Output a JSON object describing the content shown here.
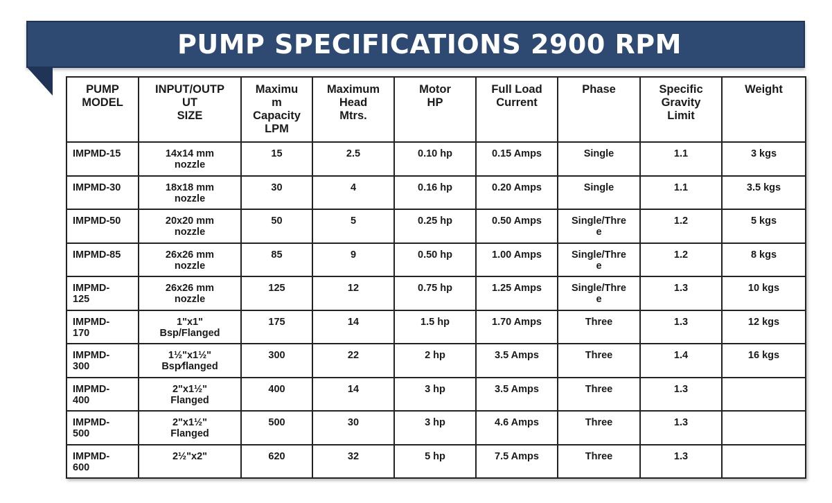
{
  "title": "PUMP SPECIFICATIONS 2900 RPM",
  "colors": {
    "banner": "#2e4a72",
    "banner_text": "#ffffff",
    "grid": "#222222"
  },
  "headers": [
    {
      "lines": [
        "PUMP",
        "MODEL"
      ]
    },
    {
      "lines": [
        "INPUT/OUTP",
        "UT",
        "SIZE"
      ]
    },
    {
      "lines": [
        "Maximu",
        "m",
        "Capacity",
        "LPM"
      ]
    },
    {
      "lines": [
        "Maximum",
        "Head",
        "Mtrs."
      ]
    },
    {
      "lines": [
        "Motor",
        "HP"
      ]
    },
    {
      "lines": [
        "Full Load",
        "Current"
      ]
    },
    {
      "lines": [
        "Phase"
      ]
    },
    {
      "lines": [
        "Specific",
        "Gravity",
        "Limit"
      ]
    },
    {
      "lines": [
        "Weight"
      ]
    }
  ],
  "rows": [
    {
      "model": [
        "IMPMD-15"
      ],
      "size": [
        "14x14 mm",
        "nozzle"
      ],
      "capacity": "15",
      "head": "2.5",
      "hp": "0.10 hp",
      "current": "0.15 Amps",
      "phase": [
        "Single"
      ],
      "gravity": "1.1",
      "weight": "3 kgs"
    },
    {
      "model": [
        "IMPMD-30"
      ],
      "size": [
        "18x18 mm",
        "nozzle"
      ],
      "capacity": "30",
      "head": "4",
      "hp": "0.16 hp",
      "current": "0.20 Amps",
      "phase": [
        "Single"
      ],
      "gravity": "1.1",
      "weight": "3.5 kgs"
    },
    {
      "model": [
        "IMPMD-50"
      ],
      "size": [
        "20x20 mm",
        "nozzle"
      ],
      "capacity": "50",
      "head": "5",
      "hp": "0.25 hp",
      "current": "0.50 Amps",
      "phase": [
        "Single/Thre",
        "e"
      ],
      "gravity": "1.2",
      "weight": "5 kgs"
    },
    {
      "model": [
        "IMPMD-85"
      ],
      "size": [
        "26x26 mm",
        "nozzle"
      ],
      "capacity": "85",
      "head": "9",
      "hp": "0.50 hp",
      "current": "1.00 Amps",
      "phase": [
        "Single/Thre",
        "e"
      ],
      "gravity": "1.2",
      "weight": "8 kgs"
    },
    {
      "model": [
        "IMPMD-",
        "125"
      ],
      "size": [
        "26x26 mm",
        "nozzle"
      ],
      "capacity": "125",
      "head": "12",
      "hp": "0.75 hp",
      "current": "1.25 Amps",
      "phase": [
        "Single/Thre",
        "e"
      ],
      "gravity": "1.3",
      "weight": "10 kgs"
    },
    {
      "model": [
        "IMPMD-",
        "170"
      ],
      "size": [
        "1\"x1\"",
        "Bsp/Flanged"
      ],
      "capacity": "175",
      "head": "14",
      "hp": "1.5 hp",
      "current": "1.70 Amps",
      "phase": [
        "Three"
      ],
      "gravity": "1.3",
      "weight": "12 kgs"
    },
    {
      "model": [
        "IMPMD-",
        "300"
      ],
      "size": [
        "1½\"x1½\"",
        "Bsp⁄flanged"
      ],
      "capacity": "300",
      "head": "22",
      "hp": "2 hp",
      "current": "3.5 Amps",
      "phase": [
        "Three"
      ],
      "gravity": "1.4",
      "weight": "16 kgs"
    },
    {
      "model": [
        "IMPMD-",
        "400"
      ],
      "size": [
        "2\"x1½\"",
        "Flanged"
      ],
      "capacity": "400",
      "head": "14",
      "hp": "3 hp",
      "current": "3.5 Amps",
      "phase": [
        "Three"
      ],
      "gravity": "1.3",
      "weight": ""
    },
    {
      "model": [
        "IMPMD-",
        "500"
      ],
      "size": [
        "2\"x1½\"",
        "Flanged"
      ],
      "capacity": "500",
      "head": "30",
      "hp": "3 hp",
      "current": "4.6 Amps",
      "phase": [
        "Three"
      ],
      "gravity": "1.3",
      "weight": ""
    },
    {
      "model": [
        "IMPMD-",
        "600"
      ],
      "size": [
        "2½\"x2\""
      ],
      "capacity": "620",
      "head": "32",
      "hp": "5 hp",
      "current": "7.5 Amps",
      "phase": [
        "Three"
      ],
      "gravity": "1.3",
      "weight": ""
    }
  ]
}
